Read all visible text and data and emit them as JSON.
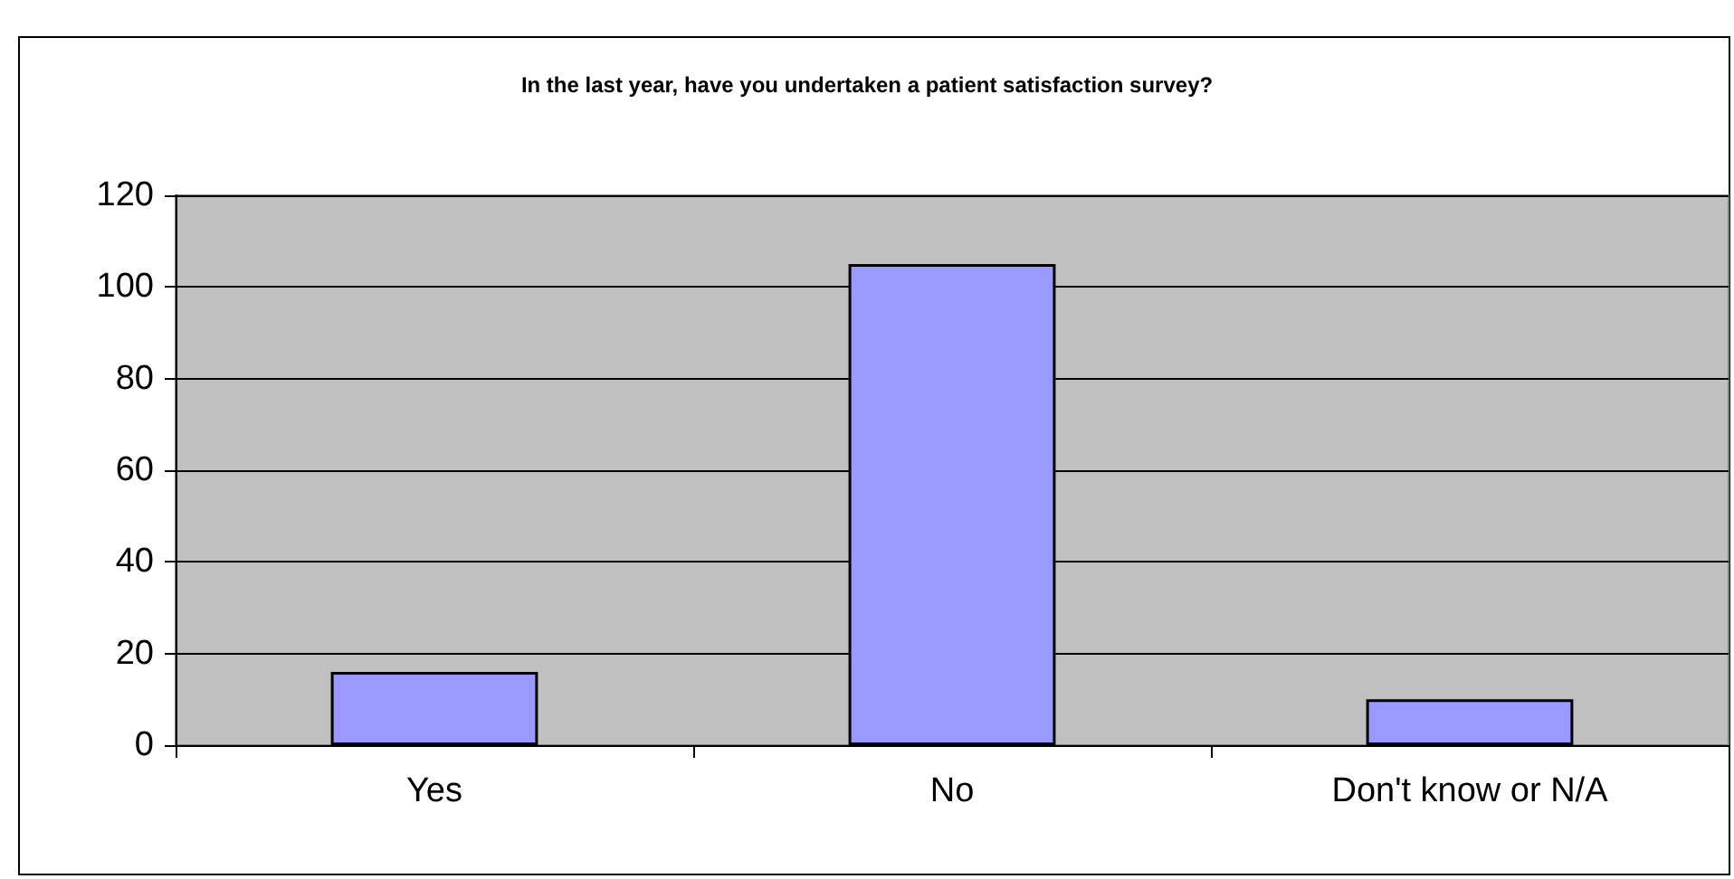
{
  "chart_data": {
    "type": "bar",
    "title": "In the last year, have you undertaken a patient satisfaction survey?",
    "categories": [
      "Yes",
      "No",
      "Don't know or N/A"
    ],
    "values": [
      16,
      105,
      10
    ],
    "color": "#9999ff",
    "ylim": [
      0,
      120
    ],
    "yticks": [
      0,
      20,
      40,
      60,
      80,
      100,
      120
    ],
    "grid": "y"
  }
}
